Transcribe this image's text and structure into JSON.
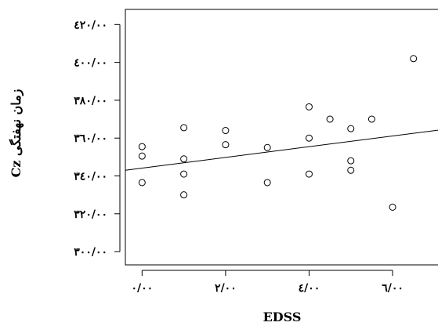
{
  "chart_data": {
    "type": "scatter",
    "xlabel": "EDSS",
    "ylabel": "زمان نهفتگی Cz",
    "xlim": [
      -0.4,
      7.2
    ],
    "ylim": [
      293,
      428
    ],
    "x_ticks": [
      {
        "value": 0,
        "label": "۰/۰۰"
      },
      {
        "value": 2,
        "label": "۲/۰۰"
      },
      {
        "value": 4,
        "label": "٤/۰۰"
      },
      {
        "value": 6,
        "label": "٦/۰۰"
      }
    ],
    "y_ticks": [
      {
        "value": 300,
        "label": "۳۰۰/۰۰"
      },
      {
        "value": 320,
        "label": "۳۲۰/۰۰"
      },
      {
        "value": 340,
        "label": "۳٤۰/۰۰"
      },
      {
        "value": 360,
        "label": "۳٦۰/۰۰"
      },
      {
        "value": 380,
        "label": "۳۸۰/۰۰"
      },
      {
        "value": 400,
        "label": "٤۰۰/۰۰"
      },
      {
        "value": 420,
        "label": "٤۲۰/۰۰"
      }
    ],
    "grid": false,
    "points": [
      {
        "x": 0.0,
        "y": 355.5
      },
      {
        "x": 0.0,
        "y": 350.5
      },
      {
        "x": 0.0,
        "y": 336.5
      },
      {
        "x": 1.0,
        "y": 365.5
      },
      {
        "x": 1.0,
        "y": 349.0
      },
      {
        "x": 1.0,
        "y": 341.0
      },
      {
        "x": 1.0,
        "y": 330.0
      },
      {
        "x": 2.0,
        "y": 364.0
      },
      {
        "x": 2.0,
        "y": 356.5
      },
      {
        "x": 3.0,
        "y": 355.0
      },
      {
        "x": 3.0,
        "y": 336.5
      },
      {
        "x": 4.0,
        "y": 376.5
      },
      {
        "x": 4.0,
        "y": 360.0
      },
      {
        "x": 4.0,
        "y": 341.0
      },
      {
        "x": 4.5,
        "y": 370.0
      },
      {
        "x": 5.0,
        "y": 365.0
      },
      {
        "x": 5.0,
        "y": 348.0
      },
      {
        "x": 5.0,
        "y": 343.0
      },
      {
        "x": 5.5,
        "y": 370.0
      },
      {
        "x": 6.0,
        "y": 323.5
      },
      {
        "x": 6.5,
        "y": 402.0
      }
    ],
    "trend_line": {
      "x": [
        -0.4,
        7.2
      ],
      "y": [
        343.0,
        364.5
      ]
    }
  }
}
